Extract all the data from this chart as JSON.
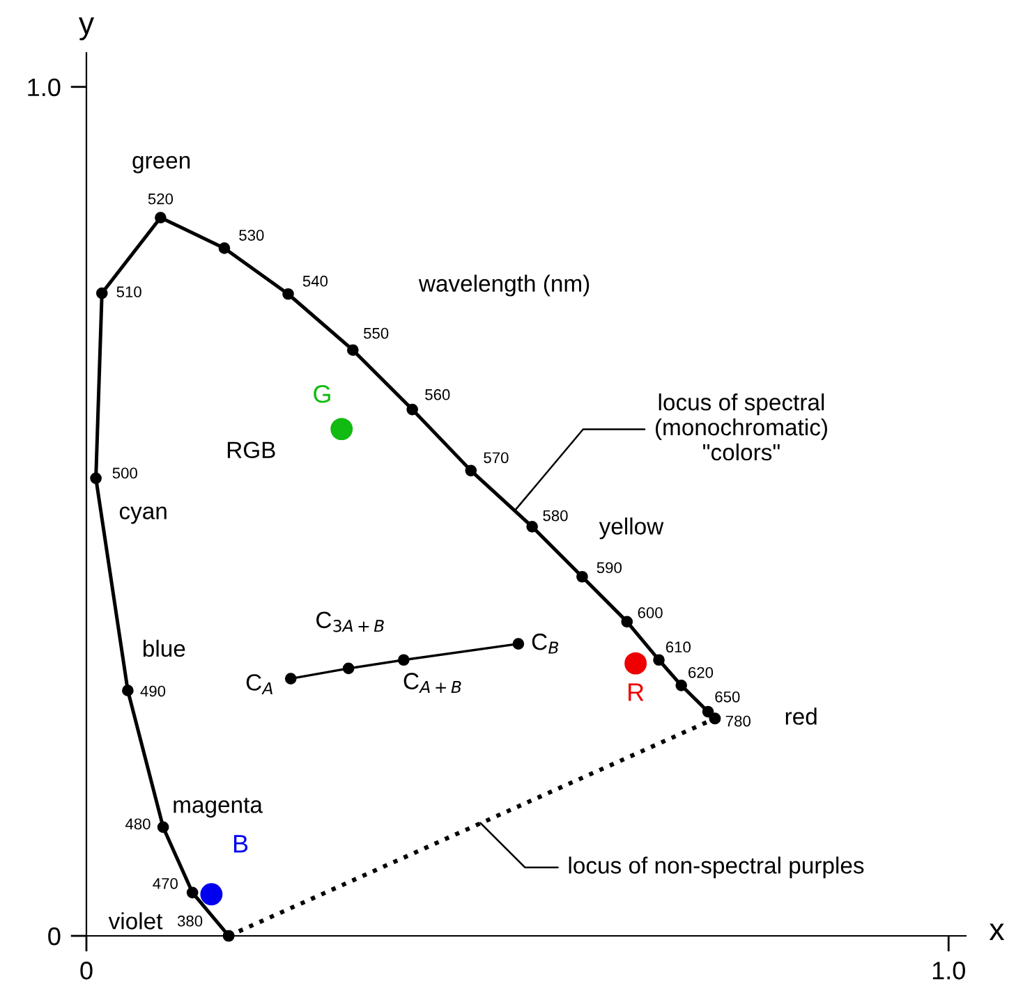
{
  "chart_data": {
    "type": "line",
    "xlabel": "x",
    "ylabel": "y",
    "xlim": [
      0,
      1.02
    ],
    "ylim": [
      0,
      1.04
    ],
    "xticks": [
      {
        "value": 0,
        "label": "0"
      },
      {
        "value": 1.0,
        "label": "1.0"
      }
    ],
    "yticks": [
      {
        "value": 0,
        "label": "0"
      },
      {
        "value": 1.0,
        "label": "1.0"
      }
    ],
    "grid": false,
    "legend": false,
    "marker": "circle",
    "series": [
      {
        "color": "#000000",
        "line_style": "solid",
        "x": [
          0.165,
          0.123,
          0.089,
          0.048,
          0.011,
          0.018,
          0.086,
          0.16,
          0.234,
          0.309,
          0.378,
          0.446,
          0.517,
          0.575,
          0.627,
          0.664,
          0.69,
          0.721,
          0.729
        ],
        "values": [
          0.0,
          0.051,
          0.128,
          0.289,
          0.539,
          0.757,
          0.846,
          0.81,
          0.756,
          0.69,
          0.62,
          0.548,
          0.482,
          0.423,
          0.37,
          0.325,
          0.295,
          0.264,
          0.256
        ]
      },
      {
        "color": "#000000",
        "line_style": "dotted",
        "x": [
          0.165,
          0.729
        ],
        "values": [
          0.0,
          0.256
        ]
      },
      {
        "color": "#000000",
        "line_style": "solid",
        "x": [
          0.237,
          0.304,
          0.368,
          0.501
        ],
        "values": [
          0.303,
          0.315,
          0.325,
          0.344
        ]
      },
      {
        "type": "scatter",
        "name": "R",
        "color": "#ee0000",
        "x": [
          0.637
        ],
        "values": [
          0.321
        ]
      },
      {
        "type": "scatter",
        "name": "G",
        "color": "#11bb11",
        "x": [
          0.296
        ],
        "values": [
          0.597
        ]
      },
      {
        "type": "scatter",
        "name": "B",
        "color": "#0000ee",
        "x": [
          0.145
        ],
        "values": [
          0.049
        ]
      }
    ],
    "annotations": [
      {
        "text": "380",
        "x": 0.165,
        "y": 0.0
      },
      {
        "text": "470",
        "x": 0.123,
        "y": 0.051
      },
      {
        "text": "480",
        "x": 0.089,
        "y": 0.128
      },
      {
        "text": "490",
        "x": 0.048,
        "y": 0.289
      },
      {
        "text": "500",
        "x": 0.011,
        "y": 0.539
      },
      {
        "text": "510",
        "x": 0.018,
        "y": 0.757
      },
      {
        "text": "520",
        "x": 0.086,
        "y": 0.846
      },
      {
        "text": "530",
        "x": 0.16,
        "y": 0.81
      },
      {
        "text": "540",
        "x": 0.234,
        "y": 0.756
      },
      {
        "text": "550",
        "x": 0.309,
        "y": 0.69
      },
      {
        "text": "560",
        "x": 0.378,
        "y": 0.62
      },
      {
        "text": "570",
        "x": 0.446,
        "y": 0.548
      },
      {
        "text": "580",
        "x": 0.517,
        "y": 0.482
      },
      {
        "text": "590",
        "x": 0.575,
        "y": 0.423
      },
      {
        "text": "600",
        "x": 0.627,
        "y": 0.37
      },
      {
        "text": "610",
        "x": 0.664,
        "y": 0.325
      },
      {
        "text": "620",
        "x": 0.69,
        "y": 0.295
      },
      {
        "text": "650",
        "x": 0.721,
        "y": 0.264
      },
      {
        "text": "780",
        "x": 0.729,
        "y": 0.256
      },
      "green",
      "cyan",
      "blue",
      "magenta",
      "violet",
      "yellow",
      "red",
      "wavelength (nm)",
      "RGB",
      {
        "text": "C$_{A}$",
        "x": 0.237,
        "y": 0.303
      },
      {
        "text": "C$_{3A+B}$",
        "x": 0.304,
        "y": 0.315
      },
      {
        "text": "C$_{A+B}$",
        "x": 0.368,
        "y": 0.325
      },
      {
        "text": "C$_{B}$",
        "x": 0.501,
        "y": 0.344
      },
      {
        "text": "locus of spectral\n(monochromatic)\n\"colors\"",
        "x": 0.497,
        "y": 0.501
      },
      {
        "text": "locus of non-spectral purples",
        "x": 0.457,
        "y": 0.133
      }
    ]
  }
}
